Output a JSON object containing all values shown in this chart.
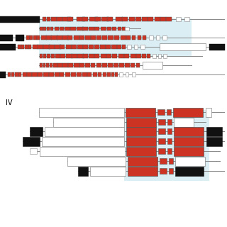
{
  "bg_color": "#ffffff",
  "hi_color": "#daeef3",
  "red": "#cc3322",
  "white": "#ffffff",
  "black": "#111111",
  "gray": "#888888",
  "figsize": [
    3.2,
    3.2
  ],
  "dpi": 100
}
